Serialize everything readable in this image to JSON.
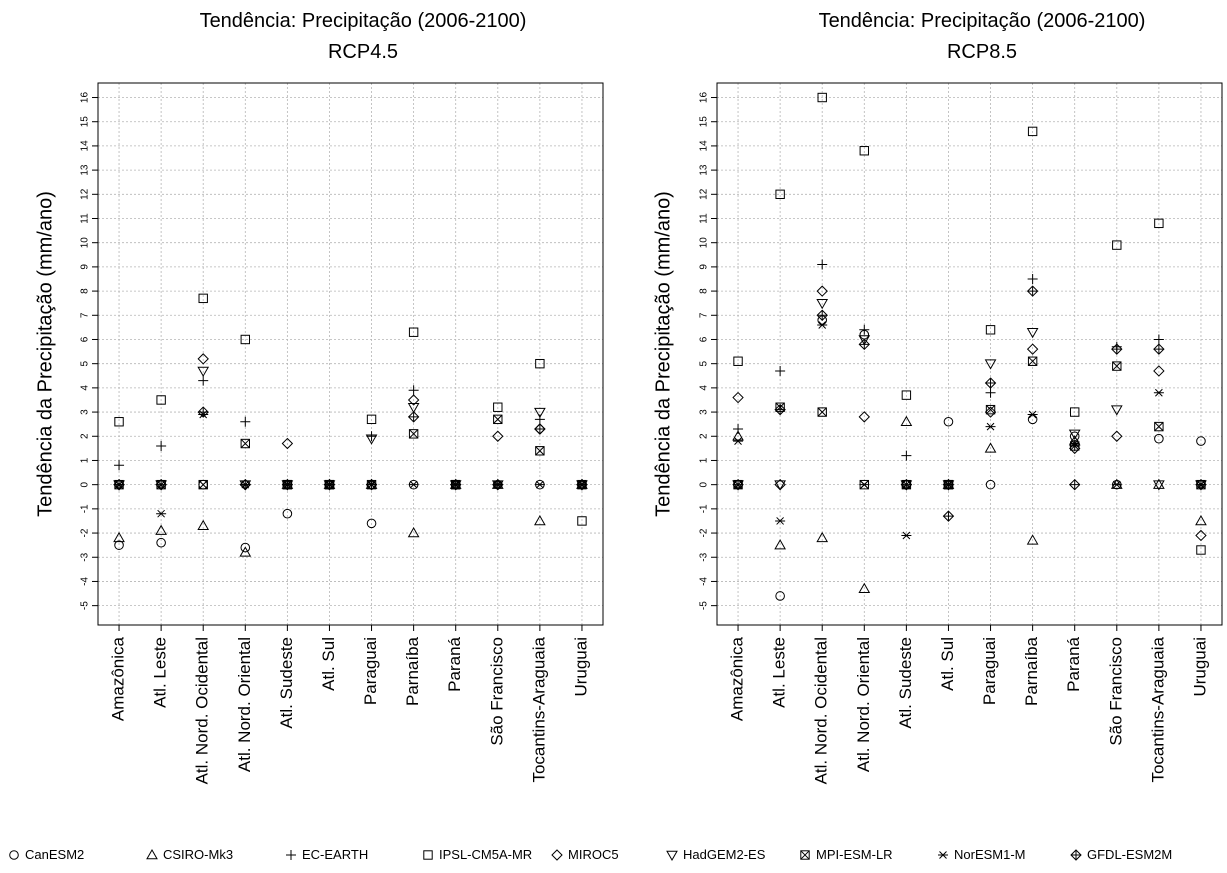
{
  "chart_data": [
    {
      "type": "scatter",
      "title": "Tendência: Precipitação (2006-2100)",
      "subtitle": "RCP4.5",
      "ylabel": "Tendência da Precipitação (mm/ano)",
      "ylim": [
        -5.8,
        16.6
      ],
      "yticks": [
        "-5",
        "-4",
        "-3",
        "-2",
        "-1",
        "0",
        "1",
        "2",
        "3",
        "4",
        "5",
        "6",
        "7",
        "8",
        "9",
        "10",
        "11",
        "12",
        "13",
        "14",
        "15",
        "16"
      ],
      "categories": [
        "Amazônica",
        "Atl. Leste",
        "Atl. Nord. Ocidental",
        "Atl. Nord. Oriental",
        "Atl. Sudeste",
        "Atl. Sul",
        "Paraguai",
        "Parnaíba",
        "Paraná",
        "São Francisco",
        "Tocantins-Araguaia",
        "Uruguai"
      ],
      "grid": true,
      "series": [
        {
          "name": "CanESM2",
          "values": [
            -2.5,
            -2.4,
            0,
            -2.6,
            -1.2,
            0,
            -1.6,
            0,
            0,
            0,
            0,
            0
          ]
        },
        {
          "name": "CSIRO-Mk3",
          "values": [
            -2.2,
            -1.9,
            -1.7,
            -2.8,
            0,
            0,
            0,
            -2.0,
            0,
            0,
            -1.5,
            0
          ]
        },
        {
          "name": "EC-EARTH",
          "values": [
            0.8,
            1.6,
            4.3,
            2.6,
            0,
            0,
            2.0,
            3.9,
            0,
            0,
            2.7,
            0
          ]
        },
        {
          "name": "IPSL-CM5A-MR",
          "values": [
            2.6,
            3.5,
            7.7,
            6.0,
            0,
            0,
            2.7,
            6.3,
            0,
            3.2,
            5.0,
            -1.5
          ]
        },
        {
          "name": "MIROC5",
          "values": [
            0,
            0,
            5.2,
            0,
            1.7,
            0,
            0,
            3.5,
            0,
            2.0,
            2.3,
            0
          ]
        },
        {
          "name": "HadGEM2-ES",
          "values": [
            0,
            0,
            4.7,
            0,
            0,
            0,
            1.9,
            3.2,
            0,
            0,
            3.0,
            0
          ]
        },
        {
          "name": "MPI-ESM-LR",
          "values": [
            0,
            0,
            0,
            1.7,
            0,
            0,
            0,
            2.1,
            0,
            2.7,
            1.4,
            0
          ]
        },
        {
          "name": "NorESM1-M",
          "values": [
            0,
            -1.2,
            2.9,
            0,
            0,
            0,
            0,
            0,
            0,
            0,
            0,
            0
          ]
        },
        {
          "name": "GFDL-ESM2M",
          "values": [
            0,
            0,
            3.0,
            0,
            0,
            0,
            0,
            2.8,
            0,
            0,
            2.3,
            0
          ]
        }
      ]
    },
    {
      "type": "scatter",
      "title": "Tendência: Precipitação (2006-2100)",
      "subtitle": "RCP8.5",
      "ylabel": "Tendência da Precipitação (mm/ano)",
      "ylim": [
        -5.8,
        16.6
      ],
      "yticks": [
        "-5",
        "-4",
        "-3",
        "-2",
        "-1",
        "0",
        "1",
        "2",
        "3",
        "4",
        "5",
        "6",
        "7",
        "8",
        "9",
        "10",
        "11",
        "12",
        "13",
        "14",
        "15",
        "16"
      ],
      "categories": [
        "Amazônica",
        "Atl. Leste",
        "Atl. Nord. Ocidental",
        "Atl. Nord. Oriental",
        "Atl. Sudeste",
        "Atl. Sul",
        "Paraguai",
        "Parnaíba",
        "Paraná",
        "São Francisco",
        "Tocantins-Araguaia",
        "Uruguai"
      ],
      "grid": true,
      "series": [
        {
          "name": "CanESM2",
          "values": [
            0,
            -4.6,
            6.8,
            6.2,
            0,
            2.6,
            0,
            2.7,
            2.0,
            0,
            1.9,
            1.8
          ]
        },
        {
          "name": "CSIRO-Mk3",
          "values": [
            2.0,
            -2.5,
            -2.2,
            -4.3,
            2.6,
            0,
            1.5,
            -2.3,
            1.8,
            0,
            0,
            -1.5
          ]
        },
        {
          "name": "EC-EARTH",
          "values": [
            2.3,
            4.7,
            9.1,
            6.4,
            1.2,
            0,
            3.8,
            8.5,
            1.6,
            5.7,
            6.0,
            0
          ]
        },
        {
          "name": "IPSL-CM5A-MR",
          "values": [
            5.1,
            12.0,
            16.0,
            13.8,
            3.7,
            0,
            6.4,
            14.6,
            3.0,
            9.9,
            10.8,
            -2.7
          ]
        },
        {
          "name": "MIROC5",
          "values": [
            3.6,
            0,
            8.0,
            2.8,
            0,
            0,
            3.0,
            5.6,
            1.5,
            2.0,
            4.7,
            -2.1
          ]
        },
        {
          "name": "HadGEM2-ES",
          "values": [
            0,
            0,
            7.5,
            6.0,
            0,
            0,
            5.0,
            6.3,
            2.1,
            3.1,
            0,
            0
          ]
        },
        {
          "name": "MPI-ESM-LR",
          "values": [
            0,
            3.2,
            3.0,
            0,
            0,
            0,
            3.1,
            5.1,
            1.6,
            4.9,
            2.4,
            0
          ]
        },
        {
          "name": "NorESM1-M",
          "values": [
            1.8,
            -1.5,
            6.6,
            0,
            -2.1,
            0,
            2.4,
            2.9,
            1.7,
            0,
            3.8,
            0
          ]
        },
        {
          "name": "GFDL-ESM2M",
          "values": [
            0,
            3.1,
            7.0,
            5.8,
            0,
            -1.3,
            4.2,
            8.0,
            0,
            5.6,
            5.6,
            0
          ]
        }
      ]
    }
  ],
  "legend": [
    {
      "symbol": "○",
      "label": "CanESM2"
    },
    {
      "symbol": "△",
      "label": "CSIRO-Mk3"
    },
    {
      "symbol": "+",
      "label": "EC-EARTH"
    },
    {
      "symbol": "□",
      "label": "IPSL-CM5A-MR"
    },
    {
      "symbol": "◇",
      "label": "MIROC5"
    },
    {
      "symbol": "▽",
      "label": "HadGEM2-ES"
    },
    {
      "symbol": "⊠",
      "label": "MPI-ESM-LR"
    },
    {
      "symbol": "∗",
      "label": "NorESM1-M"
    },
    {
      "symbol": "◈",
      "label": "GFDL-ESM2M"
    }
  ]
}
